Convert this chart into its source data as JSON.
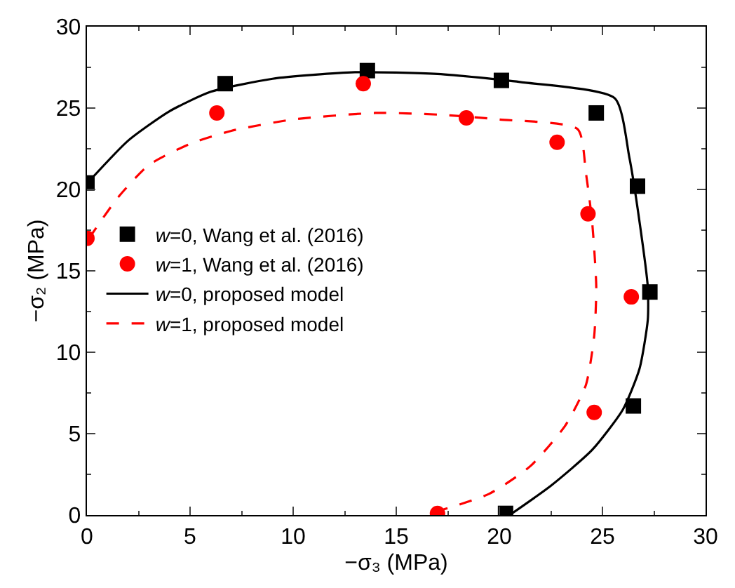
{
  "chart_data": {
    "type": "scatter",
    "xlabel": "−σ₃ (MPa)",
    "ylabel": "−σ₂ (MPa)",
    "xlim": [
      0,
      30
    ],
    "ylim": [
      0,
      30
    ],
    "xticks": [
      0,
      5,
      10,
      15,
      20,
      25,
      30
    ],
    "yticks": [
      0,
      5,
      10,
      15,
      20,
      25,
      30
    ],
    "legend": "left",
    "series": [
      {
        "name": "w=0, Wang et al. (2016)",
        "marker": "square",
        "color": "#000000",
        "x": [
          0,
          6.7,
          13.6,
          20.1,
          24.7,
          26.7,
          27.3,
          26.5,
          20.3
        ],
        "values": [
          20.4,
          26.5,
          27.3,
          26.7,
          24.7,
          20.2,
          13.7,
          6.7,
          0.1
        ]
      },
      {
        "name": "w=1, Wang et al. (2016)",
        "marker": "circle",
        "color": "#ff0000",
        "x": [
          0,
          6.3,
          13.4,
          18.4,
          22.8,
          24.3,
          26.4,
          24.6,
          17.0
        ],
        "values": [
          17.0,
          24.7,
          26.5,
          24.4,
          22.9,
          18.5,
          13.4,
          6.3,
          0.1
        ]
      },
      {
        "name": "w=0, proposed model",
        "type": "line",
        "line_style": "solid",
        "color": "#000000",
        "x": [
          0.1,
          2,
          4,
          6,
          9,
          13,
          17,
          21,
          25.6,
          26.3,
          26.8,
          27.2,
          27.2,
          26.8,
          26,
          24.5,
          22.5,
          20.5
        ],
        "values": [
          20.5,
          23,
          24.8,
          26,
          26.8,
          27.2,
          27.1,
          26.6,
          25.6,
          22,
          18,
          14,
          12,
          9,
          6.5,
          4,
          1.8,
          0
        ]
      },
      {
        "name": "w=1, proposed model",
        "type": "line",
        "line_style": "dashed",
        "color": "#ff0000",
        "x": [
          0.1,
          1.5,
          3,
          5,
          7,
          10,
          14,
          17,
          20,
          23.8,
          24.2,
          24.5,
          24.7,
          24.6,
          24.2,
          23.2,
          21.5,
          19.5,
          16.4
        ],
        "values": [
          17,
          19.5,
          21.5,
          22.8,
          23.6,
          24.3,
          24.7,
          24.6,
          24.3,
          23.7,
          21,
          18,
          14,
          11,
          8,
          5.5,
          3,
          1.3,
          0
        ]
      }
    ]
  }
}
